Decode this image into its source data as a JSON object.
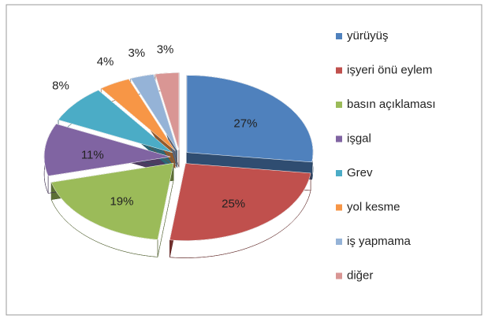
{
  "chart_data": {
    "type": "pie",
    "categories": [
      "yürüyüş",
      "işyeri önü eylem",
      "basın açıklaması",
      "işgal",
      "Grev",
      "yol kesme",
      "iş yapmama",
      "diğer"
    ],
    "values": [
      27,
      25,
      19,
      11,
      8,
      4,
      3,
      3
    ],
    "value_labels": [
      "27%",
      "25%",
      "19%",
      "11%",
      "8%",
      "4%",
      "3%",
      "3%"
    ],
    "colors": [
      "#4f81bd",
      "#c0504d",
      "#9bbb59",
      "#8064a2",
      "#4bacc6",
      "#f79646",
      "#95b3d7",
      "#d99694"
    ],
    "legend": "right"
  }
}
